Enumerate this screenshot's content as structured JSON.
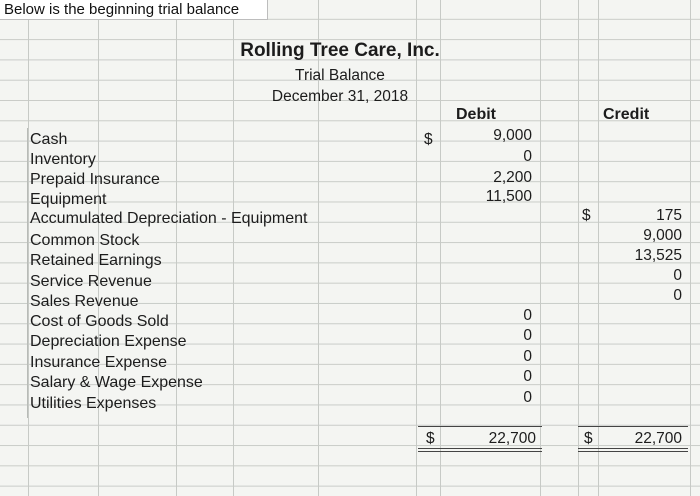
{
  "caption": "Below is the beginning trial balance",
  "header": {
    "company": "Rolling Tree Care, Inc.",
    "report": "Trial Balance",
    "date": "December 31, 2018"
  },
  "columns": {
    "debit": "Debit",
    "credit": "Credit"
  },
  "currency_symbol": "$",
  "rows": [
    {
      "label": "Cash",
      "debit": "9,000",
      "credit": ""
    },
    {
      "label": "Inventory",
      "debit": "0",
      "credit": ""
    },
    {
      "label": "Prepaid Insurance",
      "debit": "2,200",
      "credit": ""
    },
    {
      "label": "Equipment",
      "debit": "11,500",
      "credit": ""
    },
    {
      "label": "Accumulated Depreciation - Equipment",
      "debit": "",
      "credit": "175"
    },
    {
      "label": "Common Stock",
      "debit": "",
      "credit": "9,000"
    },
    {
      "label": "Retained Earnings",
      "debit": "",
      "credit": "13,525"
    },
    {
      "label": "Service Revenue",
      "debit": "",
      "credit": "0"
    },
    {
      "label": "Sales Revenue",
      "debit": "",
      "credit": "0"
    },
    {
      "label": "Cost of Goods Sold",
      "debit": "0",
      "credit": ""
    },
    {
      "label": "Depreciation Expense",
      "debit": "0",
      "credit": ""
    },
    {
      "label": "Insurance Expense",
      "debit": "0",
      "credit": ""
    },
    {
      "label": "Salary & Wage Expense",
      "debit": "0",
      "credit": ""
    },
    {
      "label": "Utilities Expenses",
      "debit": "0",
      "credit": ""
    }
  ],
  "totals": {
    "debit": "22,700",
    "credit": "22,700"
  }
}
